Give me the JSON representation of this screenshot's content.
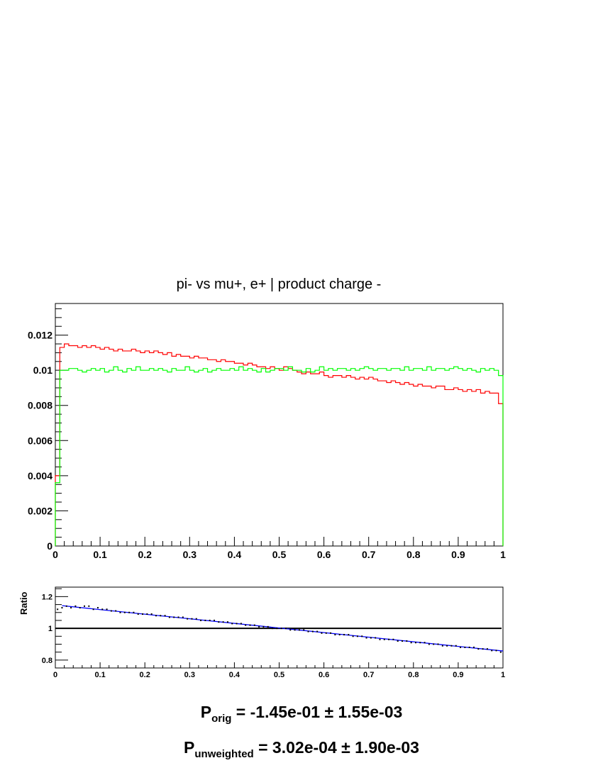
{
  "chart_data": [
    {
      "type": "line",
      "style": "step-histogram",
      "title": "pi- vs mu+, e+ | product charge -",
      "xlabel": "",
      "ylabel": "",
      "xlim": [
        0,
        1
      ],
      "ylim": [
        0,
        0.0138
      ],
      "x_ticks": [
        "0",
        "0.1",
        "0.2",
        "0.3",
        "0.4",
        "0.5",
        "0.6",
        "0.7",
        "0.8",
        "0.9",
        "1"
      ],
      "y_ticks": [
        "0",
        "0.002",
        "0.004",
        "0.006",
        "0.008",
        "0.01",
        "0.012"
      ],
      "grid": false,
      "bins": 100,
      "series": [
        {
          "color": "#ff0000",
          "values": [
            0.004,
            0.0113,
            0.0115,
            0.0114,
            0.0114,
            0.0113,
            0.0114,
            0.0113,
            0.0114,
            0.0113,
            0.0112,
            0.0113,
            0.0112,
            0.0111,
            0.0112,
            0.0111,
            0.0111,
            0.0112,
            0.0111,
            0.011,
            0.0111,
            0.011,
            0.0111,
            0.011,
            0.0109,
            0.011,
            0.0108,
            0.0109,
            0.0108,
            0.0108,
            0.0107,
            0.0108,
            0.0107,
            0.0107,
            0.0106,
            0.0106,
            0.0105,
            0.0106,
            0.0105,
            0.0105,
            0.0104,
            0.0104,
            0.0103,
            0.0104,
            0.0103,
            0.0102,
            0.0102,
            0.0101,
            0.0102,
            0.0101,
            0.01,
            0.0102,
            0.0101,
            0.01,
            0.0099,
            0.0098,
            0.0099,
            0.0098,
            0.0098,
            0.0099,
            0.0097,
            0.0096,
            0.0097,
            0.0097,
            0.0096,
            0.0097,
            0.0096,
            0.0095,
            0.0096,
            0.0095,
            0.0096,
            0.0095,
            0.0094,
            0.0094,
            0.0093,
            0.0094,
            0.0093,
            0.0092,
            0.0093,
            0.0092,
            0.0091,
            0.0092,
            0.0091,
            0.0091,
            0.009,
            0.0091,
            0.0091,
            0.0089,
            0.0089,
            0.009,
            0.0089,
            0.0088,
            0.0089,
            0.0088,
            0.0089,
            0.0087,
            0.0088,
            0.0087,
            0.0087,
            0.0081
          ]
        },
        {
          "color": "#00ff00",
          "values": [
            0.0036,
            0.01,
            0.01,
            0.0101,
            0.0101,
            0.01,
            0.0099,
            0.01,
            0.0101,
            0.01,
            0.0101,
            0.0099,
            0.01,
            0.0102,
            0.01,
            0.0099,
            0.0101,
            0.01,
            0.0102,
            0.01,
            0.01,
            0.0101,
            0.01,
            0.0101,
            0.01,
            0.0099,
            0.0101,
            0.01,
            0.01,
            0.0102,
            0.01,
            0.0099,
            0.01,
            0.0101,
            0.0099,
            0.01,
            0.0101,
            0.01,
            0.01,
            0.0101,
            0.01,
            0.0102,
            0.01,
            0.0101,
            0.01,
            0.0099,
            0.0101,
            0.0099,
            0.01,
            0.0101,
            0.0101,
            0.01,
            0.0102,
            0.01,
            0.01,
            0.0099,
            0.0101,
            0.0099,
            0.01,
            0.0102,
            0.01,
            0.0101,
            0.01,
            0.0101,
            0.0101,
            0.01,
            0.0101,
            0.01,
            0.0101,
            0.0102,
            0.0101,
            0.01,
            0.0101,
            0.0101,
            0.01,
            0.0101,
            0.0101,
            0.01,
            0.0102,
            0.01,
            0.0101,
            0.0101,
            0.01,
            0.0102,
            0.01,
            0.0101,
            0.0101,
            0.01,
            0.0101,
            0.0102,
            0.0101,
            0.01,
            0.0101,
            0.01,
            0.0099,
            0.0101,
            0.01,
            0.0101,
            0.01,
            0.0097
          ]
        }
      ]
    },
    {
      "type": "scatter",
      "title": "",
      "xlabel": "",
      "ylabel": "Ratio",
      "xlim": [
        0,
        1
      ],
      "ylim": [
        0.75,
        1.26
      ],
      "x_ticks": [
        "0",
        "0.1",
        "0.2",
        "0.3",
        "0.4",
        "0.5",
        "0.6",
        "0.7",
        "0.8",
        "0.9",
        "1"
      ],
      "y_ticks": [
        "0.8",
        "1",
        "1.2"
      ],
      "reference_line": 1,
      "fit": {
        "type": "linear",
        "color": "#0000ff",
        "x": [
          0.015,
          1.0
        ],
        "y": [
          1.143,
          0.857
        ]
      },
      "series": [
        {
          "color": "#000000",
          "x": [
            0.005,
            0.015,
            0.025,
            0.035,
            0.045,
            0.055,
            0.065,
            0.075,
            0.085,
            0.095,
            0.105,
            0.115,
            0.125,
            0.135,
            0.145,
            0.155,
            0.165,
            0.175,
            0.185,
            0.195,
            0.205,
            0.215,
            0.225,
            0.235,
            0.245,
            0.255,
            0.265,
            0.275,
            0.285,
            0.295,
            0.305,
            0.315,
            0.325,
            0.335,
            0.345,
            0.355,
            0.365,
            0.375,
            0.385,
            0.395,
            0.405,
            0.415,
            0.425,
            0.435,
            0.445,
            0.455,
            0.465,
            0.475,
            0.485,
            0.495,
            0.505,
            0.515,
            0.525,
            0.535,
            0.545,
            0.555,
            0.565,
            0.575,
            0.585,
            0.595,
            0.605,
            0.615,
            0.625,
            0.635,
            0.645,
            0.655,
            0.665,
            0.675,
            0.685,
            0.695,
            0.705,
            0.715,
            0.725,
            0.735,
            0.745,
            0.755,
            0.765,
            0.775,
            0.785,
            0.795,
            0.805,
            0.815,
            0.825,
            0.835,
            0.845,
            0.855,
            0.865,
            0.875,
            0.885,
            0.895,
            0.905,
            0.915,
            0.925,
            0.935,
            0.945,
            0.955,
            0.965,
            0.975,
            0.985,
            0.995
          ],
          "y": [
            1.12,
            1.13,
            1.14,
            1.13,
            1.14,
            1.13,
            1.14,
            1.14,
            1.12,
            1.13,
            1.12,
            1.12,
            1.11,
            1.11,
            1.1,
            1.1,
            1.1,
            1.1,
            1.09,
            1.09,
            1.09,
            1.09,
            1.08,
            1.08,
            1.08,
            1.07,
            1.07,
            1.07,
            1.07,
            1.06,
            1.06,
            1.06,
            1.05,
            1.05,
            1.05,
            1.05,
            1.04,
            1.04,
            1.04,
            1.03,
            1.03,
            1.03,
            1.02,
            1.02,
            1.02,
            1.01,
            1.01,
            1.01,
            1.0,
            1.0,
            1.0,
            1.0,
            0.99,
            0.99,
            0.99,
            0.99,
            0.98,
            0.98,
            0.98,
            0.97,
            0.97,
            0.97,
            0.96,
            0.96,
            0.96,
            0.96,
            0.95,
            0.95,
            0.95,
            0.94,
            0.94,
            0.94,
            0.93,
            0.93,
            0.93,
            0.93,
            0.92,
            0.92,
            0.92,
            0.91,
            0.91,
            0.91,
            0.91,
            0.9,
            0.9,
            0.9,
            0.89,
            0.89,
            0.89,
            0.89,
            0.88,
            0.88,
            0.88,
            0.88,
            0.87,
            0.87,
            0.87,
            0.86,
            0.86,
            0.85
          ]
        }
      ]
    }
  ],
  "results": {
    "orig": {
      "symbol": "P",
      "subscript": "orig",
      "text": " = -1.45e-01 ± 1.55e-03"
    },
    "unweighted": {
      "symbol": "P",
      "subscript": "unweighted",
      "text": " = 3.02e-04  ± 1.90e-03"
    }
  }
}
